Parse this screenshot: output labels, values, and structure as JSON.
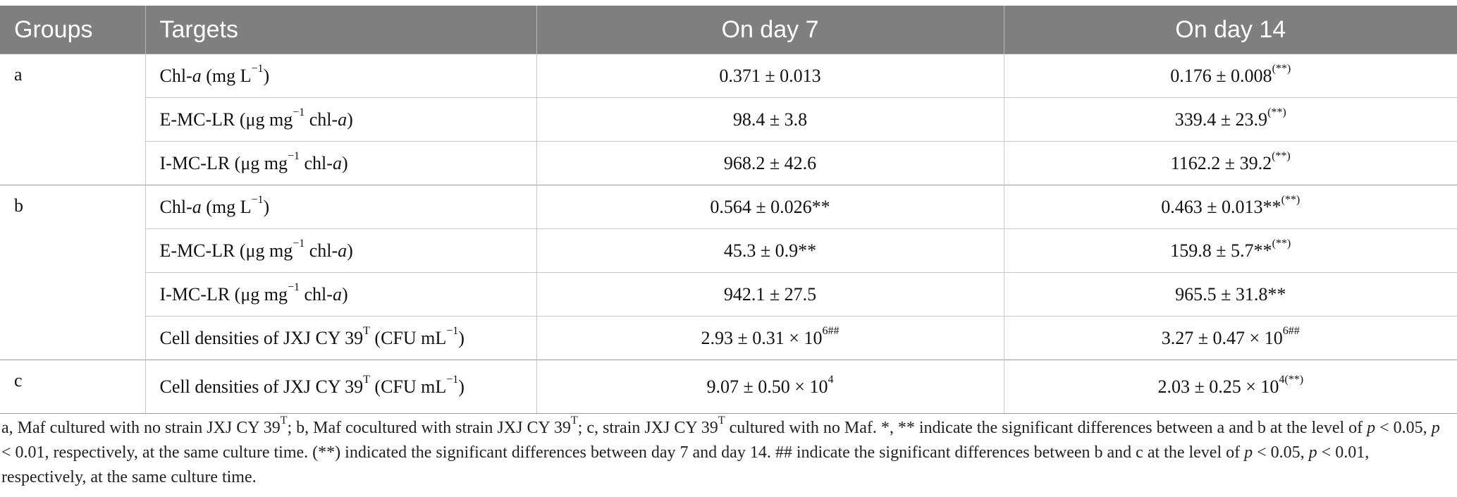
{
  "table": {
    "headers": [
      "Groups",
      "Targets",
      "On day 7",
      "On day 14"
    ],
    "groups": [
      {
        "label": "a",
        "rows": [
          {
            "target_pre": "Chl-",
            "target_it": "a",
            "target_post": " (mg L",
            "target_sup": "−1",
            "target_tail": ")",
            "day7": "0.371 ± 0.013",
            "day7_sup": "",
            "day14": "0.176 ± 0.008",
            "day14_sup": "(**)"
          },
          {
            "target_pre": "E-MC-LR (μg mg",
            "target_it": "",
            "target_post": "",
            "target_sup": "−1",
            "target_tail": " chl-",
            "target_it2": "a",
            "target_end": ")",
            "day7": "98.4 ± 3.8",
            "day7_sup": "",
            "day14": "339.4 ± 23.9",
            "day14_sup": "(**)"
          },
          {
            "target_pre": "I-MC-LR (μg mg",
            "target_it": "",
            "target_post": "",
            "target_sup": "−1",
            "target_tail": " chl-",
            "target_it2": "a",
            "target_end": ")",
            "day7": "968.2 ± 42.6",
            "day7_sup": "",
            "day14": "1162.2 ± 39.2",
            "day14_sup": "(**)"
          }
        ]
      },
      {
        "label": "b",
        "rows": [
          {
            "target_pre": "Chl-",
            "target_it": "a",
            "target_post": " (mg L",
            "target_sup": "−1",
            "target_tail": ")",
            "day7": "0.564 ± 0.026**",
            "day7_sup": "",
            "day14": "0.463 ± 0.013**",
            "day14_sup": "(**)"
          },
          {
            "target_pre": "E-MC-LR (μg mg",
            "target_it": "",
            "target_post": "",
            "target_sup": "−1",
            "target_tail": " chl-",
            "target_it2": "a",
            "target_end": ")",
            "day7": "45.3 ± 0.9**",
            "day7_sup": "",
            "day14": "159.8 ± 5.7**",
            "day14_sup": "(**)"
          },
          {
            "target_pre": "I-MC-LR (μg mg",
            "target_it": "",
            "target_post": "",
            "target_sup": "−1",
            "target_tail": " chl-",
            "target_it2": "a",
            "target_end": ")",
            "day7": "942.1 ± 27.5",
            "day7_sup": "",
            "day14": "965.5 ± 31.8**",
            "day14_sup": ""
          },
          {
            "target_pre": "Cell densities of JXJ CY 39",
            "target_it": "",
            "target_post": "",
            "target_sup": "T",
            "target_tail": " (CFU mL",
            "target_sup2": "−1",
            "target_end": ")",
            "day7": "2.93 ± 0.31 × 10",
            "day7_sup": "6##",
            "day14": "3.27 ± 0.47 × 10",
            "day14_sup": "6##"
          }
        ]
      },
      {
        "label": "c",
        "rows": [
          {
            "target_pre": "Cell densities of JXJ CY 39",
            "target_it": "",
            "target_post": "",
            "target_sup": "T",
            "target_tail": " (CFU mL",
            "target_sup2": "−1",
            "target_end": ")",
            "day7": "9.07 ± 0.50 × 10",
            "day7_sup": "4",
            "day14": "2.03 ± 0.25 × 10",
            "day14_sup": "4(**)"
          }
        ]
      }
    ]
  },
  "footnote": {
    "p1": "a, Maf cultured with no strain JXJ CY 39",
    "p1_sup": "T",
    "p2": "; b, Maf cocultured with strain JXJ CY 39",
    "p2_sup": "T",
    "p3": "; c, strain JXJ CY 39",
    "p3_sup": "T",
    "p4": " cultured with no Maf. *, ** indicate the significant differences between a and b at the level of ",
    "p_a": "p",
    "p5": " < 0.05, ",
    "p_b": "p",
    "p6": " < 0.01, respectively, at the same culture time. (**) indicated the significant differences between day 7 and day 14. ## indicate the significant differences between b and c at the level of ",
    "p_c": "p",
    "p7": " < 0.05, ",
    "p_d": "p",
    "p8": " < 0.01, respectively, at the same culture time."
  }
}
